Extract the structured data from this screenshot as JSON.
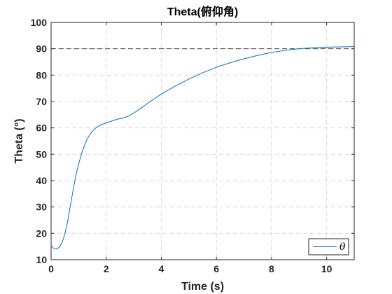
{
  "chart_data": {
    "type": "line",
    "title": "Theta(俯仰角)",
    "xlabel": "Time (s)",
    "ylabel": "Theta (°)",
    "xlim": [
      0,
      11
    ],
    "ylim": [
      10,
      100
    ],
    "xticks": [
      0,
      2,
      4,
      6,
      8,
      10
    ],
    "yticks": [
      10,
      20,
      30,
      40,
      50,
      60,
      70,
      80,
      90,
      100
    ],
    "grid": true,
    "legend_position": "bottom-right",
    "reference_line": {
      "y": 90,
      "style": "dashed",
      "color": "#404040"
    },
    "series": [
      {
        "name": "θ",
        "color": "#0072BD",
        "x": [
          0,
          0.1,
          0.2,
          0.3,
          0.4,
          0.5,
          0.6,
          0.7,
          0.8,
          0.9,
          1.0,
          1.1,
          1.2,
          1.3,
          1.4,
          1.5,
          1.6,
          1.7,
          1.8,
          1.9,
          2.0,
          2.2,
          2.4,
          2.6,
          2.8,
          3.0,
          3.2,
          3.5,
          4.0,
          4.5,
          5.0,
          5.5,
          6.0,
          6.5,
          7.0,
          7.5,
          8.0,
          8.5,
          9.0,
          9.5,
          10.0,
          10.5,
          11.0
        ],
        "values": [
          15.2,
          14.2,
          14.0,
          14.8,
          16.5,
          19.8,
          24.5,
          30.5,
          36.5,
          42.0,
          46.3,
          50.0,
          53.0,
          55.6,
          57.4,
          58.8,
          59.8,
          60.5,
          61.1,
          61.5,
          61.9,
          62.6,
          63.3,
          63.7,
          64.4,
          65.6,
          67.0,
          69.3,
          72.8,
          75.8,
          78.5,
          80.9,
          83.0,
          84.7,
          86.2,
          87.5,
          88.6,
          89.4,
          90.0,
          90.4,
          90.6,
          90.7,
          90.8
        ]
      }
    ]
  }
}
